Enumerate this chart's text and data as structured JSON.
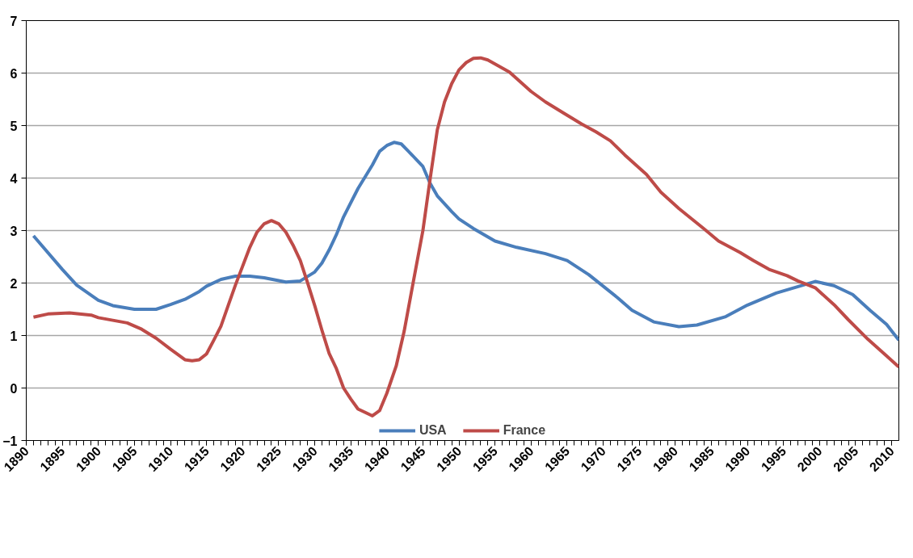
{
  "chart_data": {
    "type": "line",
    "line_style": "solid",
    "marker": "none",
    "grid": "y",
    "legend": "bottom",
    "xlim": [
      1890,
      2011
    ],
    "xticks": [
      1890,
      1895,
      1900,
      1905,
      1910,
      1915,
      1920,
      1925,
      1930,
      1935,
      1940,
      1945,
      1950,
      1955,
      1960,
      1965,
      1970,
      1975,
      1980,
      1985,
      1990,
      1995,
      2000,
      2005,
      2010
    ],
    "ylim": [
      -1,
      7
    ],
    "yticks": [
      -1,
      0,
      1,
      2,
      3,
      4,
      5,
      6,
      7
    ],
    "series": [
      {
        "name": "USA",
        "color": "#4a7ebb",
        "x": [
          1891,
          1895,
          1897,
          1900,
          1902,
          1905,
          1908,
          1910,
          1912,
          1914,
          1915,
          1917,
          1919,
          1921,
          1923,
          1926,
          1928,
          1930,
          1931,
          1932,
          1933,
          1934,
          1936,
          1938,
          1939,
          1940,
          1941,
          1942,
          1943,
          1945,
          1946,
          1947,
          1949,
          1950,
          1952,
          1955,
          1958,
          1962,
          1965,
          1968,
          1972,
          1974,
          1977,
          1980.5,
          1983,
          1987,
          1990,
          1994,
          1997.7,
          1999.4,
          2002,
          2004.6,
          2007,
          2009.3,
          2011
        ],
        "values": [
          2.9,
          2.26,
          1.96,
          1.67,
          1.57,
          1.5,
          1.5,
          1.59,
          1.69,
          1.84,
          1.94,
          2.07,
          2.13,
          2.13,
          2.1,
          2.02,
          2.04,
          2.21,
          2.38,
          2.63,
          2.92,
          3.26,
          3.8,
          4.25,
          4.51,
          4.62,
          4.68,
          4.65,
          4.51,
          4.22,
          3.9,
          3.66,
          3.36,
          3.22,
          3.04,
          2.8,
          2.68,
          2.56,
          2.43,
          2.16,
          1.72,
          1.48,
          1.26,
          1.17,
          1.2,
          1.36,
          1.58,
          1.81,
          1.96,
          2.03,
          1.95,
          1.78,
          1.48,
          1.21,
          0.91
        ]
      },
      {
        "name": "France",
        "color": "#be4b48",
        "x": [
          1891,
          1893,
          1896,
          1899,
          1900,
          1902,
          1904,
          1906,
          1908,
          1910,
          1912,
          1913,
          1914,
          1915,
          1916,
          1917,
          1918,
          1919,
          1921,
          1922,
          1923,
          1924,
          1925,
          1926,
          1927,
          1928,
          1929,
          1930,
          1931,
          1932,
          1933,
          1934,
          1935,
          1936,
          1938,
          1939,
          1940,
          1941.3,
          1942.4,
          1943.6,
          1945,
          1946,
          1947,
          1948,
          1949,
          1950,
          1951,
          1952,
          1953,
          1954,
          1957,
          1960,
          1962,
          1964.6,
          1967,
          1969,
          1971,
          1973,
          1976,
          1978,
          1980.5,
          1984,
          1986,
          1989,
          1990.8,
          1993,
          1995.5,
          1997,
          1999.4,
          2002,
          2004,
          2006.7,
          2009.3,
          2011
        ],
        "values": [
          1.35,
          1.41,
          1.43,
          1.39,
          1.34,
          1.29,
          1.24,
          1.12,
          0.95,
          0.74,
          0.54,
          0.52,
          0.54,
          0.65,
          0.91,
          1.18,
          1.57,
          1.96,
          2.68,
          2.97,
          3.13,
          3.19,
          3.13,
          2.97,
          2.72,
          2.43,
          2.01,
          1.57,
          1.1,
          0.66,
          0.37,
          0.0,
          -0.21,
          -0.4,
          -0.53,
          -0.43,
          -0.1,
          0.42,
          1.08,
          1.97,
          3.0,
          3.98,
          4.92,
          5.45,
          5.8,
          6.06,
          6.2,
          6.28,
          6.29,
          6.25,
          6.02,
          5.65,
          5.45,
          5.23,
          5.03,
          4.88,
          4.71,
          4.44,
          4.07,
          3.73,
          3.42,
          3.03,
          2.8,
          2.58,
          2.43,
          2.26,
          2.14,
          2.04,
          1.91,
          1.59,
          1.3,
          0.93,
          0.61,
          0.4
        ]
      }
    ]
  }
}
